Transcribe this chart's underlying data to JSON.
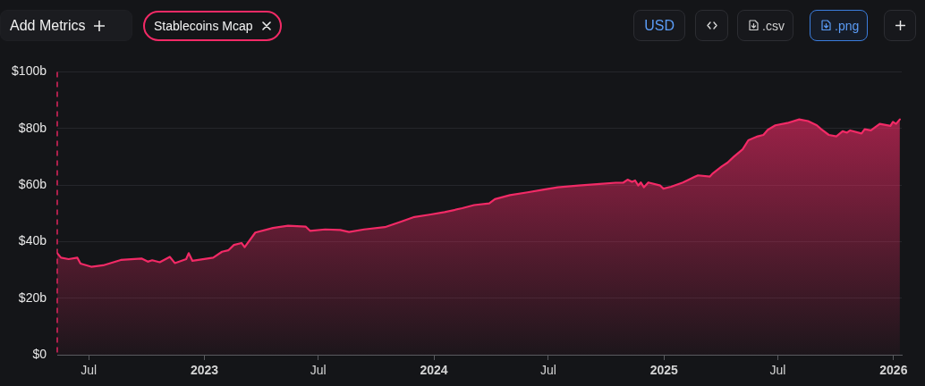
{
  "chart_data": {
    "type": "area",
    "x": [
      "2022-05-12",
      "2022-05-18",
      "2022-05-30",
      "2022-06-13",
      "2022-06-18",
      "2022-07-05",
      "2022-07-24",
      "2022-08-21",
      "2022-09-23",
      "2022-10-03",
      "2022-10-10",
      "2022-10-22",
      "2022-11-07",
      "2022-11-15",
      "2022-12-03",
      "2022-12-07",
      "2022-12-13",
      "2023-01-15",
      "2023-01-29",
      "2023-02-08",
      "2023-02-17",
      "2023-03-01",
      "2023-03-06",
      "2023-03-23",
      "2023-04-20",
      "2023-05-14",
      "2023-06-11",
      "2023-06-18",
      "2023-07-12",
      "2023-08-05",
      "2023-08-19",
      "2023-09-12",
      "2023-10-15",
      "2023-11-08",
      "2023-12-01",
      "2023-12-25",
      "2024-01-18",
      "2024-02-15",
      "2024-03-05",
      "2024-03-29",
      "2024-04-07",
      "2024-05-01",
      "2024-05-29",
      "2024-06-22",
      "2024-07-16",
      "2024-08-18",
      "2024-09-16",
      "2024-10-16",
      "2024-10-28",
      "2024-11-04",
      "2024-11-11",
      "2024-11-16",
      "2024-11-21",
      "2024-11-25",
      "2024-11-30",
      "2024-12-07",
      "2024-12-26",
      "2024-12-31",
      "2025-01-12",
      "2025-01-31",
      "2025-02-19",
      "2025-02-24",
      "2025-03-15",
      "2025-03-19",
      "2025-04-03",
      "2025-04-12",
      "2025-04-22",
      "2025-05-06",
      "2025-05-15",
      "2025-05-30",
      "2025-06-08",
      "2025-06-15",
      "2025-06-27",
      "2025-07-16",
      "2025-08-04",
      "2025-08-18",
      "2025-09-01",
      "2025-09-08",
      "2025-09-20",
      "2025-10-02",
      "2025-10-12",
      "2025-10-19",
      "2025-10-24",
      "2025-11-11",
      "2025-11-16",
      "2025-11-26",
      "2025-12-10",
      "2025-12-27",
      "2025-12-31",
      "2026-01-05",
      "2026-01-11"
    ],
    "series": [
      {
        "name": "Stablecoins Mcap",
        "color": "#f22a66",
        "values": [
          35.9,
          34.3,
          33.8,
          34.3,
          32.2,
          31.1,
          31.6,
          33.5,
          34.0,
          32.9,
          33.4,
          32.7,
          34.6,
          32.4,
          33.8,
          35.9,
          33.2,
          34.3,
          36.4,
          36.9,
          38.8,
          39.5,
          38.0,
          43.2,
          44.8,
          45.6,
          45.3,
          43.8,
          44.3,
          44.1,
          43.4,
          44.3,
          45.1,
          46.9,
          48.7,
          49.5,
          50.4,
          51.8,
          52.9,
          53.5,
          55.0,
          56.4,
          57.4,
          58.3,
          59.2,
          59.8,
          60.3,
          60.8,
          60.8,
          61.9,
          61.1,
          61.6,
          59.8,
          60.9,
          59.2,
          60.9,
          59.8,
          58.7,
          59.4,
          60.9,
          62.9,
          63.4,
          63.0,
          64.0,
          66.6,
          67.9,
          70.0,
          72.6,
          75.8,
          77.2,
          77.7,
          79.5,
          81.1,
          81.9,
          83.2,
          82.6,
          81.1,
          79.7,
          77.7,
          77.2,
          79.0,
          78.5,
          79.3,
          78.2,
          79.7,
          79.3,
          81.6,
          80.9,
          82.3,
          81.6,
          83.2
        ]
      }
    ],
    "xlim": [
      "2022-05-12",
      "2026-01-14"
    ],
    "xticks": [
      {
        "value": "2022-07-01",
        "label": "Jul"
      },
      {
        "value": "2023-01-01",
        "label": "2023"
      },
      {
        "value": "2023-07-01",
        "label": "Jul"
      },
      {
        "value": "2024-01-01",
        "label": "2024"
      },
      {
        "value": "2024-07-01",
        "label": "Jul"
      },
      {
        "value": "2025-01-01",
        "label": "2025"
      },
      {
        "value": "2025-07-01",
        "label": "Jul"
      },
      {
        "value": "2026-01-01",
        "label": "2026"
      }
    ],
    "ylim": [
      0,
      100
    ],
    "yticks": [
      {
        "value": 0,
        "label": "$0"
      },
      {
        "value": 20,
        "label": "$20b"
      },
      {
        "value": 40,
        "label": "$40b"
      },
      {
        "value": 60,
        "label": "$60b"
      },
      {
        "value": 80,
        "label": "$80b"
      },
      {
        "value": 100,
        "label": "$100b"
      }
    ],
    "ref_lines": [
      {
        "axis": "x",
        "value": "2022-05-12",
        "color": "#e0245e",
        "line_style": "dashed"
      }
    ],
    "grid": "y",
    "legend": "top left",
    "annotations": [
      "Add Metrics",
      "USD",
      ".csv",
      ".png"
    ]
  }
}
